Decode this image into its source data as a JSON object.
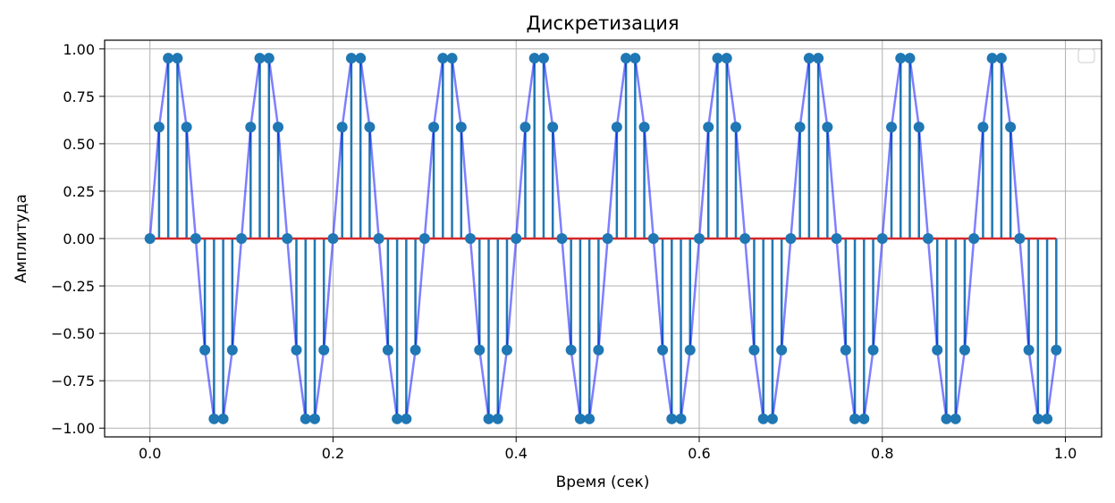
{
  "chart_data": {
    "type": "stem",
    "title": "Дискретизация",
    "xlabel": "Время (сек)",
    "ylabel": "Амплитуда",
    "xlim": [
      -0.0495,
      1.0395
    ],
    "ylim": [
      -1.0461,
      1.0461
    ],
    "xticks": [
      0.0,
      0.2,
      0.4,
      0.6,
      0.8,
      1.0
    ],
    "xtick_labels": [
      "0.0",
      "0.2",
      "0.4",
      "0.6",
      "0.8",
      "1.0"
    ],
    "yticks": [
      1.0,
      0.75,
      0.5,
      0.25,
      0.0,
      -0.25,
      -0.5,
      -0.75,
      -1.0
    ],
    "ytick_labels": [
      "1.00",
      "0.75",
      "0.50",
      "0.25",
      "0.00",
      "−0.25",
      "−0.50",
      "−0.75",
      "−1.00"
    ],
    "grid": true,
    "legend_position": "upper-right",
    "legend_entries": [],
    "baseline": 0,
    "x": [
      0.0,
      0.01,
      0.02,
      0.03,
      0.04,
      0.05,
      0.06,
      0.07,
      0.08,
      0.09,
      0.1,
      0.11,
      0.12,
      0.13,
      0.14,
      0.15,
      0.16,
      0.17,
      0.18,
      0.19,
      0.2,
      0.21,
      0.22,
      0.23,
      0.24,
      0.25,
      0.26,
      0.27,
      0.28,
      0.29,
      0.3,
      0.31,
      0.32,
      0.33,
      0.34,
      0.35,
      0.36,
      0.37,
      0.38,
      0.39,
      0.4,
      0.41,
      0.42,
      0.43,
      0.44,
      0.45,
      0.46,
      0.47,
      0.48,
      0.49,
      0.5,
      0.51,
      0.52,
      0.53,
      0.54,
      0.55,
      0.56,
      0.57,
      0.58,
      0.59,
      0.6,
      0.61,
      0.62,
      0.63,
      0.64,
      0.65,
      0.66,
      0.67,
      0.68,
      0.69,
      0.7,
      0.71,
      0.72,
      0.73,
      0.74,
      0.75,
      0.76,
      0.77,
      0.78,
      0.79,
      0.8,
      0.81,
      0.82,
      0.83,
      0.84,
      0.85,
      0.86,
      0.87,
      0.88,
      0.89,
      0.9,
      0.91,
      0.92,
      0.93,
      0.94,
      0.95,
      0.96,
      0.97,
      0.98,
      0.99
    ],
    "series": [
      {
        "values": [
          0,
          0.588,
          0.951,
          0.951,
          0.588,
          0,
          -0.588,
          -0.951,
          -0.951,
          -0.588,
          0,
          0.588,
          0.951,
          0.951,
          0.588,
          0,
          -0.588,
          -0.951,
          -0.951,
          -0.588,
          0,
          0.588,
          0.951,
          0.951,
          0.588,
          0,
          -0.588,
          -0.951,
          -0.951,
          -0.588,
          0,
          0.588,
          0.951,
          0.951,
          0.588,
          0,
          -0.588,
          -0.951,
          -0.951,
          -0.588,
          0,
          0.588,
          0.951,
          0.951,
          0.588,
          0,
          -0.588,
          -0.951,
          -0.951,
          -0.588,
          0,
          0.588,
          0.951,
          0.951,
          0.588,
          0,
          -0.588,
          -0.951,
          -0.951,
          -0.588,
          0,
          0.588,
          0.951,
          0.951,
          0.588,
          0,
          -0.588,
          -0.951,
          -0.951,
          -0.588,
          0,
          0.588,
          0.951,
          0.951,
          0.588,
          0,
          -0.588,
          -0.951,
          -0.951,
          -0.588,
          0,
          0.588,
          0.951,
          0.951,
          0.588,
          0,
          -0.588,
          -0.951,
          -0.951,
          -0.588,
          0,
          0.588,
          0.951,
          0.951,
          0.588,
          0,
          -0.588,
          -0.951,
          -0.951,
          -0.588
        ]
      }
    ],
    "colors": {
      "stem": "#1f77b4",
      "marker": "#1f77b4",
      "line": "#0000ff",
      "baseline": "#d62728",
      "grid": "#b0b0b0",
      "axes": "#000000"
    }
  }
}
